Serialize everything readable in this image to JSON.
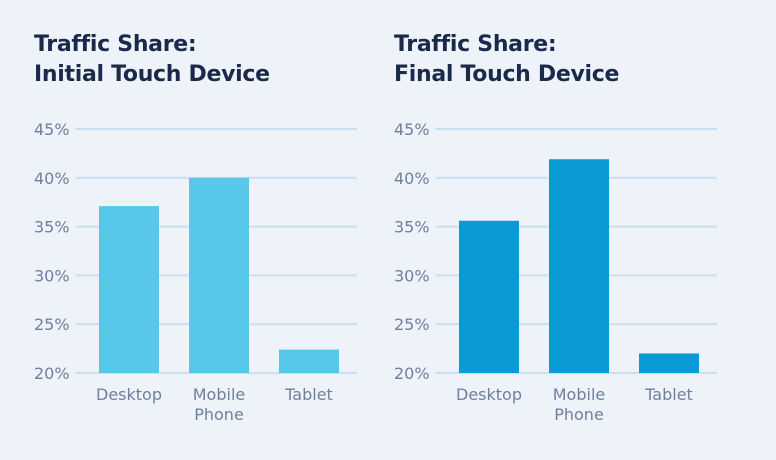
{
  "colors": {
    "background": "#eef3fa",
    "grid": "#c9dff2",
    "title": "#1b2a4a",
    "axis_text": "#6f7f9d"
  },
  "chart_data": [
    {
      "type": "bar",
      "title_lines": [
        "Traffic Share:",
        "Initial Touch Device"
      ],
      "categories": [
        [
          "Desktop"
        ],
        [
          "Mobile",
          "Phone"
        ],
        [
          "Tablet"
        ]
      ],
      "values": [
        37.1,
        40.0,
        22.4
      ],
      "ylim": [
        20,
        45
      ],
      "yticks": [
        20,
        25,
        30,
        35,
        40,
        45
      ],
      "ytick_labels": [
        "20%",
        "25%",
        "30%",
        "35%",
        "40%",
        "45%"
      ],
      "color": "#57c8ea",
      "grid": true
    },
    {
      "type": "bar",
      "title_lines": [
        "Traffic Share:",
        "Final Touch Device"
      ],
      "categories": [
        [
          "Desktop"
        ],
        [
          "Mobile",
          "Phone"
        ],
        [
          "Tablet"
        ]
      ],
      "values": [
        35.6,
        41.9,
        22.0
      ],
      "ylim": [
        20,
        45
      ],
      "yticks": [
        20,
        25,
        30,
        35,
        40,
        45
      ],
      "ytick_labels": [
        "20%",
        "25%",
        "30%",
        "35%",
        "40%",
        "45%"
      ],
      "color": "#0a9ad6",
      "grid": true
    }
  ]
}
